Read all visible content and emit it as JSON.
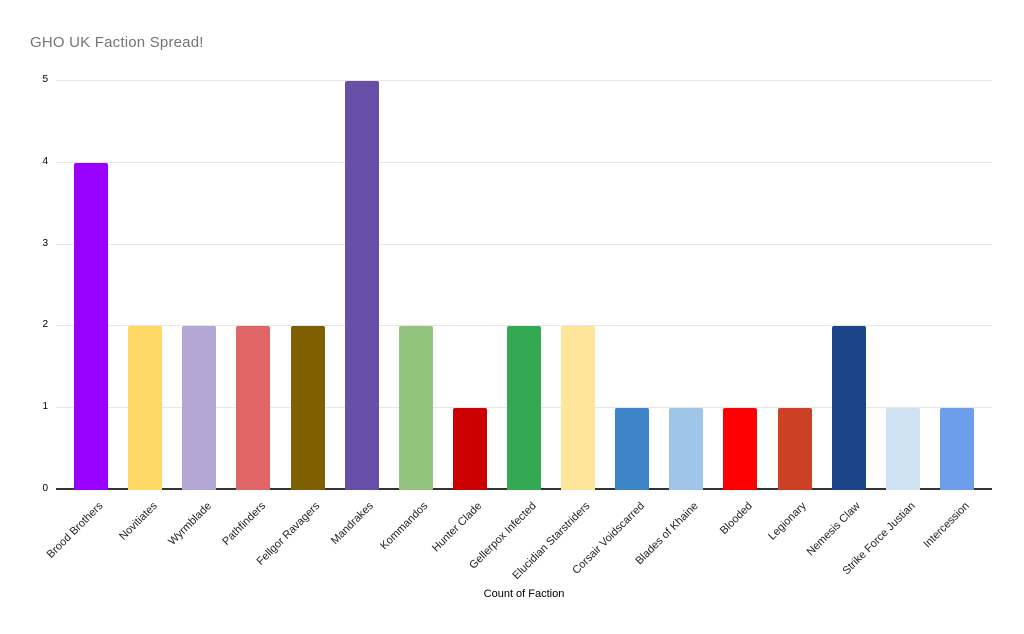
{
  "chart_data": {
    "type": "bar",
    "title": "GHO UK Faction Spread!",
    "xlabel": "Count of Faction",
    "ylabel": "",
    "ylim": [
      0,
      5
    ],
    "yticks": [
      0,
      1,
      2,
      3,
      4,
      5
    ],
    "grid": true,
    "legend": "none",
    "categories": [
      "Brood Brothers",
      "Novitiates",
      "Wyrmblade",
      "Pathfinders",
      "Fellgor Ravagers",
      "Mandrakes",
      "Kommandos",
      "Hunter Clade",
      "Gellerpox Infected",
      "Elucidian Starstriders",
      "Corsair Voidscarred",
      "Blades of Khaine",
      "Blooded",
      "Legionary",
      "Nemesis Claw",
      "Strike Force Justian",
      "Intercession"
    ],
    "values": [
      4,
      2,
      2,
      2,
      2,
      5,
      2,
      1,
      2,
      2,
      1,
      1,
      1,
      1,
      2,
      1,
      1
    ],
    "bar_colors": [
      "#9900ff",
      "#ffd966",
      "#b4a7d6",
      "#e06666",
      "#7f6000",
      "#674ea7",
      "#93c47d",
      "#cc0000",
      "#34a853",
      "#ffe599",
      "#3d85c6",
      "#9fc5e8",
      "#ff0000",
      "#cc4125",
      "#1c4587",
      "#cfe2f3",
      "#6d9eeb"
    ]
  },
  "style_colors": {
    "background": "#ffffff",
    "title_text": "#757575",
    "axis_text": "#222222",
    "gridline": "#e6e6e6",
    "axis_line": "#333333"
  }
}
